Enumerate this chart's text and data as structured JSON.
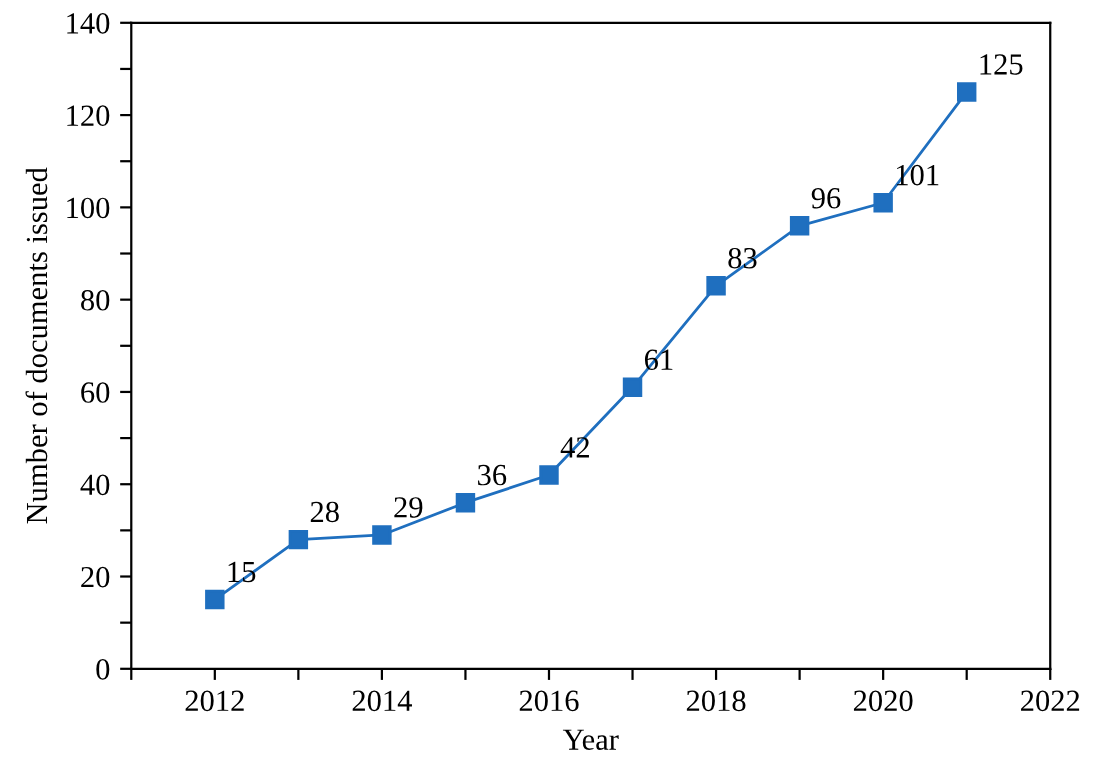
{
  "chart_data": {
    "type": "line",
    "xlabel": "Year",
    "ylabel": "Number of documents issued",
    "x": [
      2012,
      2013,
      2014,
      2015,
      2016,
      2017,
      2018,
      2019,
      2020,
      2021
    ],
    "series": [
      {
        "color": "#1f6fbf",
        "values": [
          15,
          28,
          29,
          36,
          42,
          61,
          83,
          96,
          101,
          125
        ]
      }
    ],
    "xlim": [
      2011,
      2022
    ],
    "xticks": [
      {
        "value": 2011,
        "label": null
      },
      2012,
      {
        "value": 2013,
        "label": null
      },
      2014,
      {
        "value": 2015,
        "label": null
      },
      2016,
      {
        "value": 2017,
        "label": null
      },
      2018,
      {
        "value": 2019,
        "label": null
      },
      2020,
      {
        "value": 2021,
        "label": null
      },
      2022
    ],
    "ylim": [
      0,
      140
    ],
    "yticks": [
      0,
      {
        "value": 10,
        "label": null
      },
      20,
      {
        "value": 30,
        "label": null
      },
      40,
      {
        "value": 50,
        "label": null
      },
      60,
      {
        "value": 70,
        "label": null
      },
      80,
      {
        "value": 90,
        "label": null
      },
      100,
      {
        "value": 110,
        "label": null
      },
      120,
      {
        "value": 130,
        "label": null
      },
      140
    ],
    "marker": "square",
    "line_style": "solid",
    "grid": false,
    "legend": false,
    "data_labels": true
  }
}
